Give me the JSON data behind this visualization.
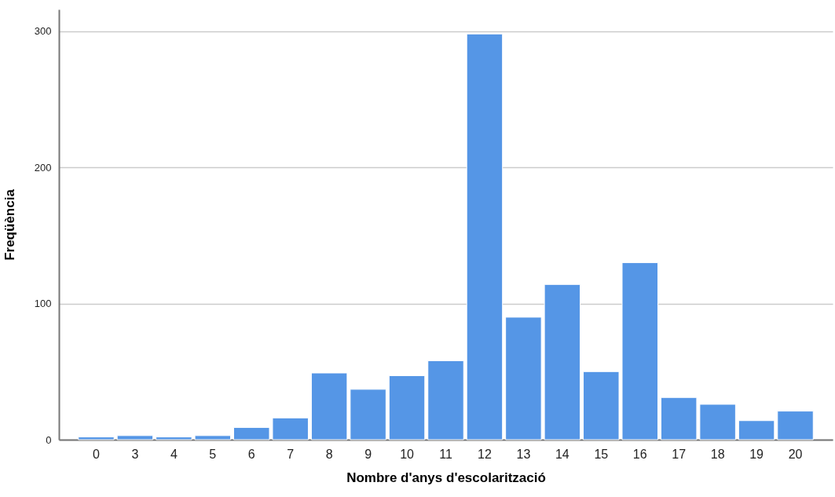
{
  "chart_data": {
    "type": "bar",
    "xlabel": "Nombre d'anys d'escolarització",
    "ylabel": "Freqüència",
    "categories": [
      "0",
      "3",
      "4",
      "5",
      "6",
      "7",
      "8",
      "9",
      "10",
      "11",
      "12",
      "13",
      "14",
      "15",
      "16",
      "17",
      "18",
      "19",
      "20"
    ],
    "values": [
      2,
      3,
      2,
      3,
      9,
      16,
      49,
      37,
      47,
      58,
      298,
      90,
      114,
      50,
      130,
      31,
      26,
      14,
      21
    ],
    "color": "#5596e6",
    "ylim": [
      0,
      316
    ],
    "yticks": [
      0,
      100,
      200,
      300
    ],
    "grid": "y"
  }
}
